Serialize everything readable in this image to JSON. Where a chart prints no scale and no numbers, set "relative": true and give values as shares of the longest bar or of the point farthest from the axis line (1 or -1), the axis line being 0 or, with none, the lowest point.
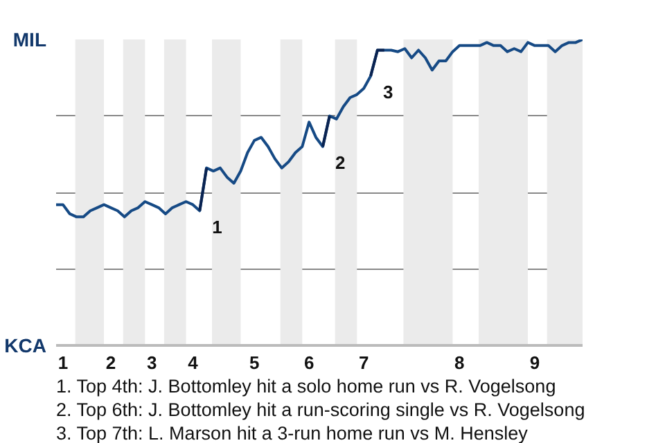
{
  "chart_data": {
    "type": "line",
    "relative": true,
    "categories": [
      null,
      "1",
      null,
      null,
      null,
      null,
      null,
      null,
      "2",
      null,
      null,
      null,
      null,
      null,
      "3",
      null,
      null,
      null,
      null,
      null,
      "4",
      null,
      null,
      null,
      null,
      null,
      null,
      null,
      null,
      "5",
      null,
      null,
      null,
      null,
      null,
      null,
      null,
      "6",
      null,
      null,
      null,
      null,
      null,
      null,
      null,
      "7",
      null,
      null,
      null,
      null,
      null,
      null,
      null,
      null,
      null,
      null,
      null,
      null,
      null,
      "8",
      null,
      null,
      null,
      null,
      null,
      null,
      null,
      null,
      null,
      null,
      "9",
      null,
      null,
      null,
      null,
      null,
      null,
      null
    ],
    "series": [
      {
        "color": "#164a85",
        "values": [
          0.46,
          0.46,
          0.43,
          0.42,
          0.42,
          0.44,
          0.45,
          0.46,
          0.45,
          0.44,
          0.42,
          0.44,
          0.45,
          0.47,
          0.46,
          0.45,
          0.43,
          0.45,
          0.46,
          0.47,
          0.46,
          0.44,
          0.58,
          0.57,
          0.58,
          0.55,
          0.53,
          0.57,
          0.63,
          0.67,
          0.68,
          0.65,
          0.61,
          0.58,
          0.6,
          0.63,
          0.65,
          0.73,
          0.68,
          0.65,
          0.75,
          0.74,
          0.78,
          0.81,
          0.82,
          0.84,
          0.88,
          0.965,
          0.965,
          0.965,
          0.96,
          0.97,
          0.94,
          0.965,
          0.94,
          0.9,
          0.93,
          0.93,
          0.96,
          0.98,
          0.98,
          0.98,
          0.98,
          0.99,
          0.98,
          0.98,
          0.96,
          0.97,
          0.96,
          0.99,
          0.98,
          0.98,
          0.98,
          0.96,
          0.98,
          0.99,
          0.99,
          1.0
        ]
      },
      {
        "name": "1",
        "color": "#0a2351",
        "values": [
          null,
          null,
          null,
          null,
          null,
          null,
          null,
          null,
          null,
          null,
          null,
          null,
          null,
          null,
          null,
          null,
          null,
          null,
          null,
          null,
          null,
          0.44,
          0.58,
          null,
          null,
          null,
          null,
          null,
          null,
          null,
          null,
          null,
          null,
          null,
          null,
          null,
          null,
          null,
          null,
          null,
          null,
          null,
          null,
          null,
          null,
          null,
          null,
          null,
          null,
          null,
          null,
          null,
          null,
          null,
          null,
          null,
          null,
          null,
          null,
          null,
          null,
          null,
          null,
          null,
          null,
          null,
          null,
          null,
          null,
          null,
          null,
          null,
          null,
          null,
          null,
          null,
          null,
          null
        ]
      },
      {
        "name": "2",
        "color": "#0a2351",
        "values": [
          null,
          null,
          null,
          null,
          null,
          null,
          null,
          null,
          null,
          null,
          null,
          null,
          null,
          null,
          null,
          null,
          null,
          null,
          null,
          null,
          null,
          null,
          null,
          null,
          null,
          null,
          null,
          null,
          null,
          null,
          null,
          null,
          null,
          null,
          null,
          null,
          null,
          null,
          null,
          0.65,
          0.75,
          null,
          null,
          null,
          null,
          null,
          null,
          null,
          null,
          null,
          null,
          null,
          null,
          null,
          null,
          null,
          null,
          null,
          null,
          null,
          null,
          null,
          null,
          null,
          null,
          null,
          null,
          null,
          null,
          null,
          null,
          null,
          null,
          null,
          null,
          null,
          null,
          null
        ]
      },
      {
        "name": "3",
        "color": "#0a2351",
        "values": [
          null,
          null,
          null,
          null,
          null,
          null,
          null,
          null,
          null,
          null,
          null,
          null,
          null,
          null,
          null,
          null,
          null,
          null,
          null,
          null,
          null,
          null,
          null,
          null,
          null,
          null,
          null,
          null,
          null,
          null,
          null,
          null,
          null,
          null,
          null,
          null,
          null,
          null,
          null,
          null,
          null,
          null,
          null,
          null,
          null,
          null,
          0.88,
          0.965,
          0.965,
          null,
          null,
          null,
          null,
          null,
          null,
          null,
          null,
          null,
          null,
          null,
          null,
          null,
          null,
          null,
          null,
          null,
          null,
          null,
          null,
          null,
          null,
          null,
          null,
          null,
          null,
          null,
          null,
          null
        ]
      }
    ],
    "grid": "y",
    "annotations": [
      "MIL",
      "KCA",
      "1. Top 4th: J. Bottomley hit a solo home run vs R. Vogelsong",
      "2. Top 6th: J. Bottomley hit a run-scoring single vs R. Vogelsong",
      "3. Top 7th: L. Marson hit a 3-run home run vs M. Hensley"
    ]
  }
}
